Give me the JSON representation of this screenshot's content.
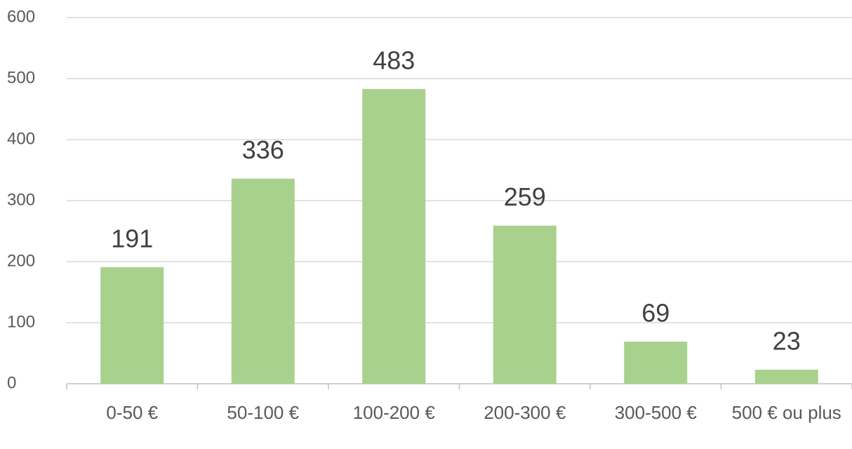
{
  "chart_data": {
    "type": "bar",
    "categories": [
      "0-50 €",
      "50-100 €",
      "100-200 €",
      "200-300 €",
      "300-500 €",
      "500 € ou plus"
    ],
    "values": [
      191,
      336,
      483,
      259,
      69,
      23
    ],
    "color": "#a9d18e",
    "ylim": [
      0,
      600
    ],
    "yticks": [
      0,
      100,
      200,
      300,
      400,
      500,
      600
    ],
    "grid": true
  }
}
